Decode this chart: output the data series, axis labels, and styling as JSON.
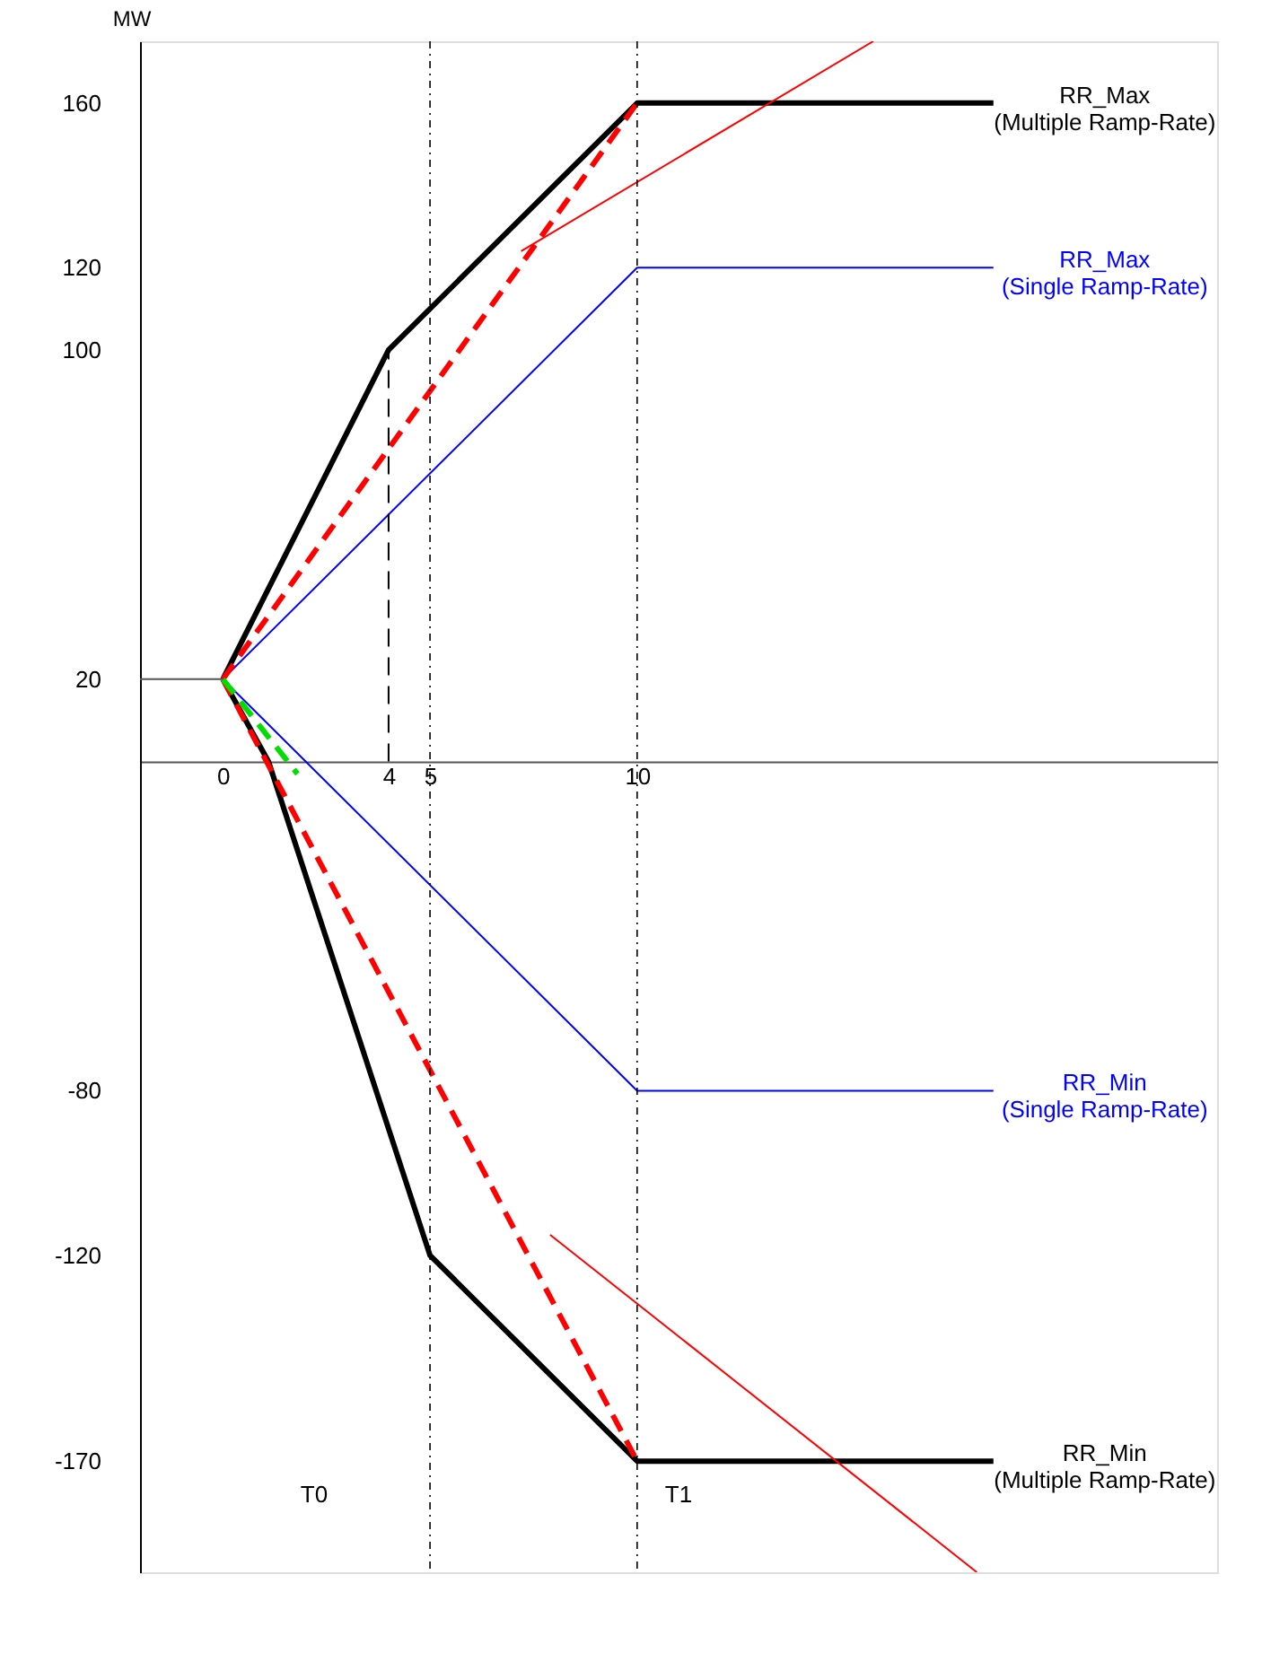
{
  "chart_data": {
    "type": "line",
    "ylabel": "MW",
    "xlim": [
      -2,
      24
    ],
    "ylim": [
      -197,
      175
    ],
    "xticks": [
      0,
      4,
      5,
      10
    ],
    "yticks": [
      160,
      120,
      100,
      20,
      -80,
      -120,
      -170
    ],
    "grid": false,
    "series": [
      {
        "name": "RR_Max\n(Multiple Ramp-Rate)",
        "color": "#000000",
        "x": [
          0,
          4,
          10,
          18.6
        ],
        "values": [
          20,
          100,
          160,
          160
        ]
      },
      {
        "name": "RR_Min\n(Multiple Ramp-Rate)",
        "color": "#000000",
        "x": [
          0,
          1.1,
          5,
          10,
          18.6
        ],
        "values": [
          20,
          0,
          -120,
          -170,
          -170
        ]
      },
      {
        "name": "RR_Max\n(Single Ramp-Rate)",
        "color": "#0000ff",
        "x": [
          0,
          10,
          18.6
        ],
        "values": [
          20,
          120,
          120
        ]
      },
      {
        "name": "RR_Min\n(Single Ramp-Rate)",
        "color": "#0000ff",
        "x": [
          0,
          10,
          18.6
        ],
        "values": [
          20,
          -80,
          -80
        ]
      },
      {
        "color": "#ff0000",
        "line_style": "dashed",
        "x": [
          0,
          10
        ],
        "values": [
          20,
          160
        ]
      },
      {
        "color": "#ff0000",
        "line_style": "dashed",
        "x": [
          0,
          10
        ],
        "values": [
          20,
          -170
        ]
      },
      {
        "color": "#00dd00",
        "line_style": "dashed",
        "x": [
          0,
          1.8
        ],
        "values": [
          20,
          -3
        ]
      },
      {
        "color": "#000000",
        "line_style": "dashed",
        "x": [
          4,
          4
        ],
        "values": [
          0,
          100
        ]
      },
      {
        "color": "#555555",
        "x": [
          -2,
          0
        ],
        "values": [
          20,
          20
        ]
      },
      {
        "color": "#ff0000",
        "x": [
          7.2,
          15.7
        ],
        "values": [
          124,
          175
        ]
      },
      {
        "color": "#ff0000",
        "x": [
          7.9,
          18.2
        ],
        "values": [
          -115,
          -197
        ]
      }
    ],
    "ref_lines": [
      {
        "axis": "x",
        "value": 5,
        "line_style": "dotted",
        "color": "#000000"
      },
      {
        "axis": "x",
        "value": 10,
        "line_style": "dotted",
        "color": "#000000"
      }
    ],
    "annotations": [
      "T0",
      "T1"
    ]
  }
}
